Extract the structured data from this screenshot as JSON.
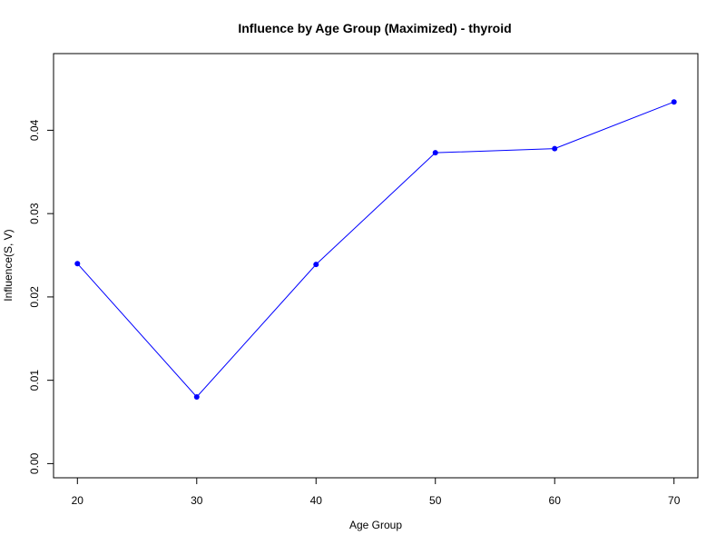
{
  "chart_data": {
    "type": "line",
    "title": "Influence by Age Group (Maximized) - thyroid",
    "xlabel": "Age Group",
    "ylabel": "Influence(S, V)",
    "x": [
      20,
      30,
      40,
      50,
      60,
      70
    ],
    "series": [
      {
        "values": [
          0.024,
          0.008,
          0.0239,
          0.0373,
          0.0378,
          0.0434
        ]
      }
    ],
    "x_ticks": [
      "20",
      "30",
      "40",
      "50",
      "60",
      "70"
    ],
    "y_ticks": [
      "0.00",
      "0.01",
      "0.02",
      "0.03",
      "0.04"
    ],
    "xlim": [
      18,
      72
    ],
    "ylim": [
      -0.0017,
      0.0492
    ],
    "grid": false,
    "colors": {
      "line": "#0000ff",
      "points": "#0000ff",
      "axis": "#000000"
    }
  }
}
